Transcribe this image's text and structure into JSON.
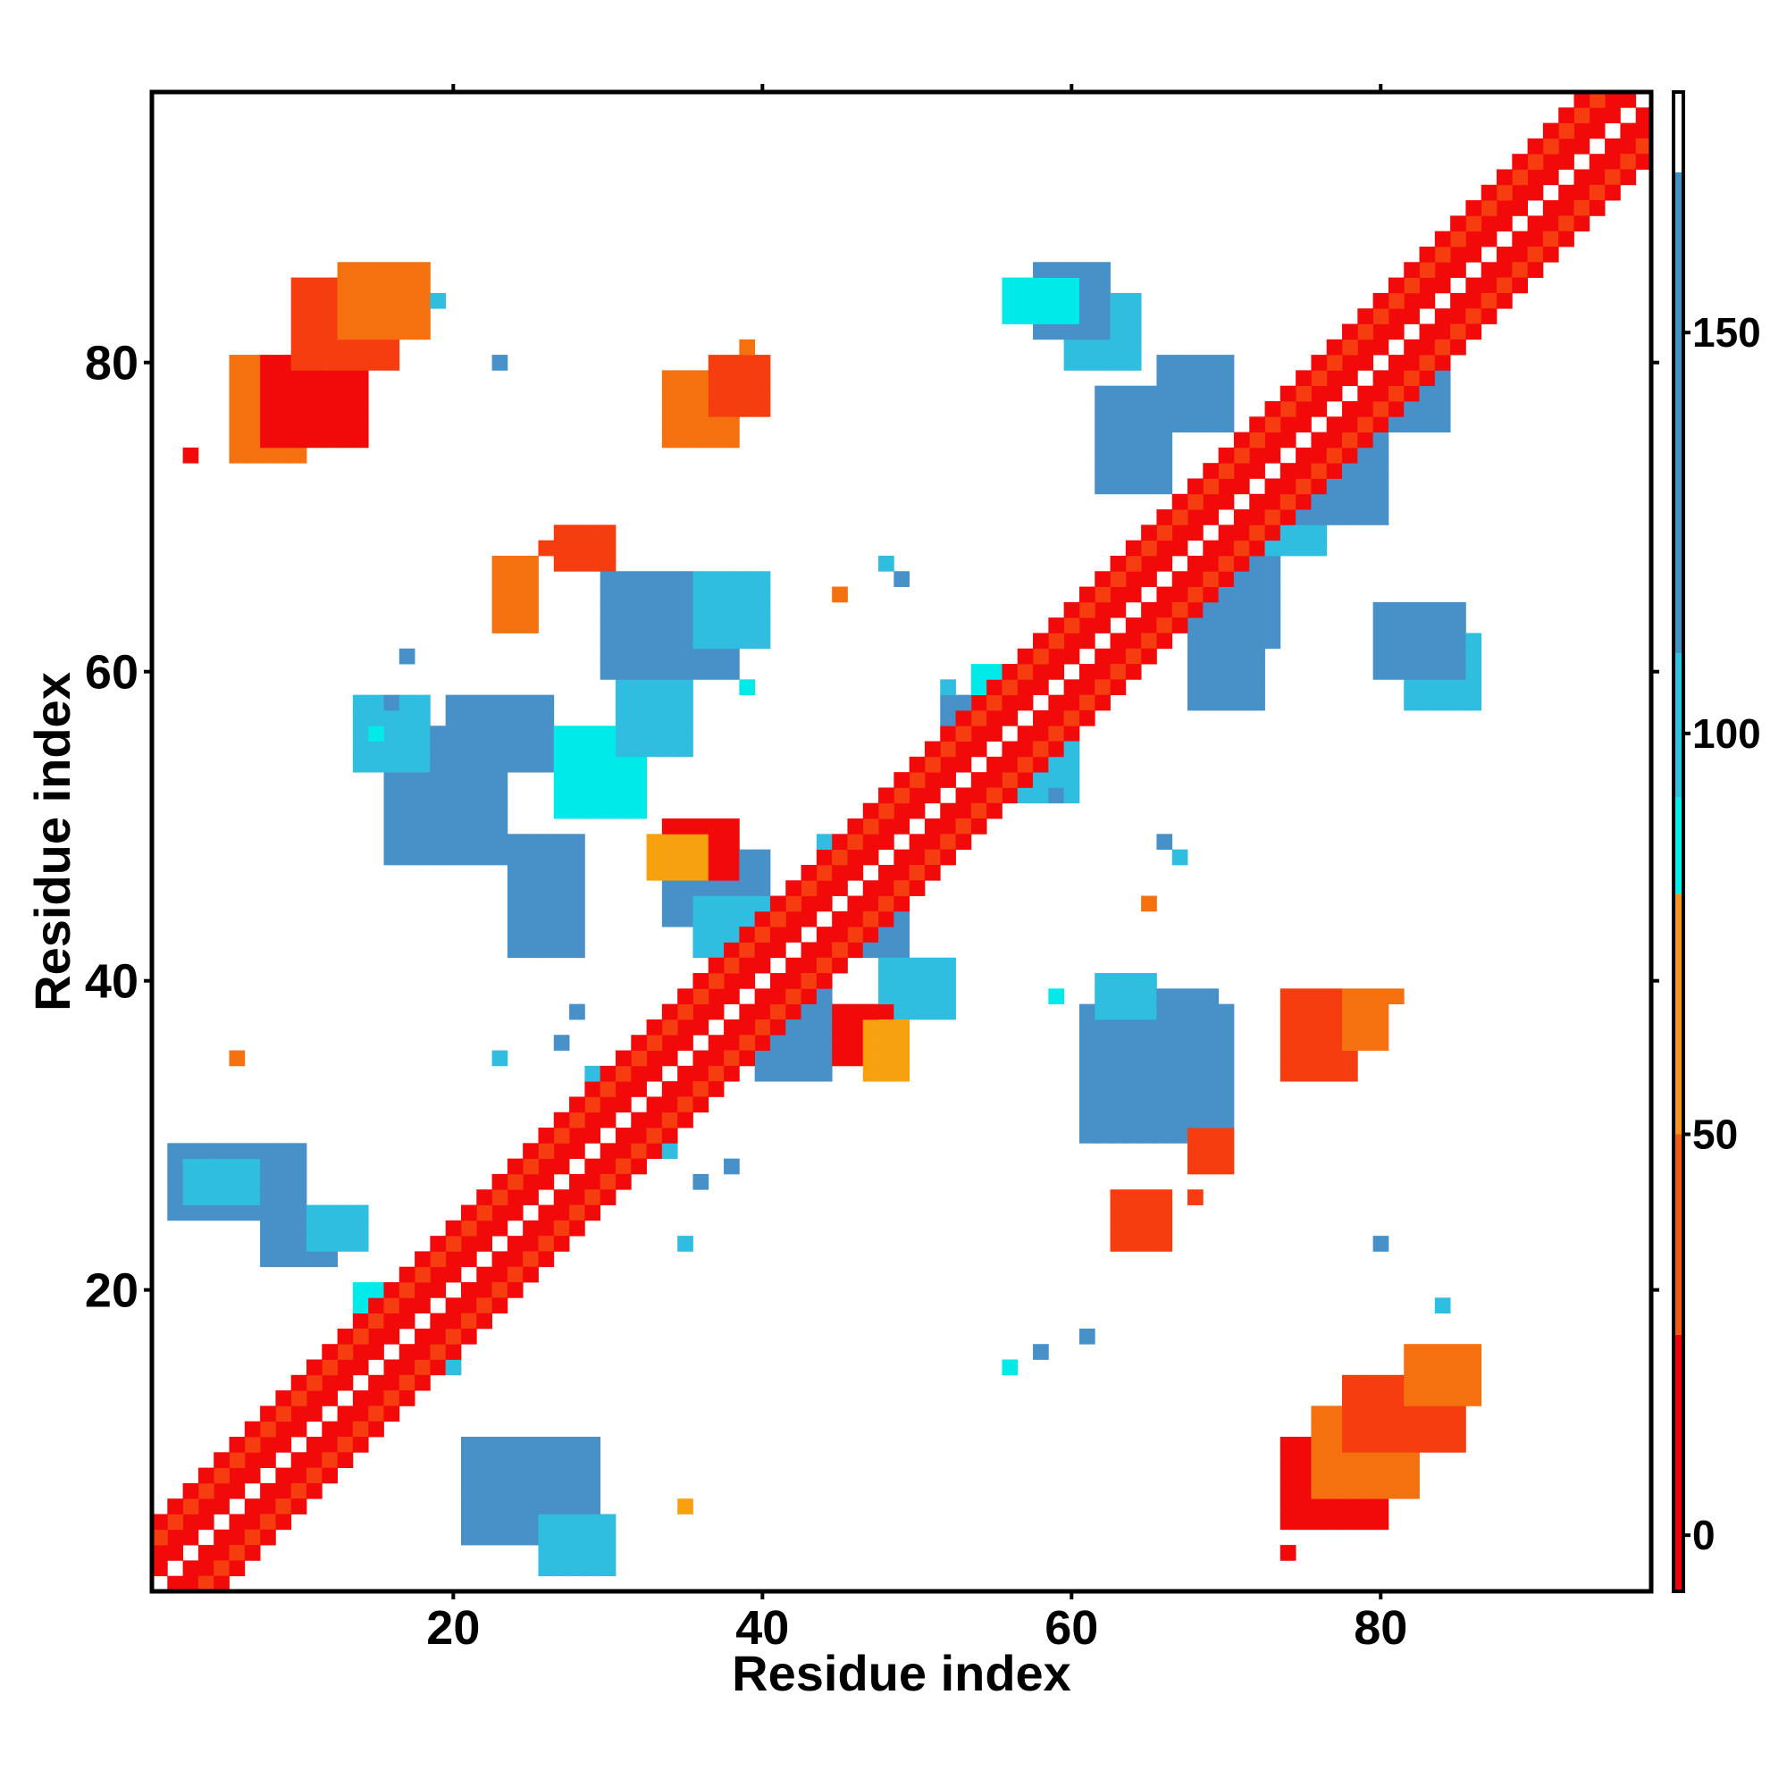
{
  "chart_data": {
    "type": "heatmap",
    "title": "",
    "xlabel": "Residue index",
    "ylabel": "Residue index",
    "xlim": [
      0.5,
      97.5
    ],
    "ylim": [
      0.5,
      97.5
    ],
    "x_ticks": [
      20,
      40,
      60,
      80
    ],
    "y_ticks": [
      20,
      40,
      60,
      80
    ],
    "grid": false,
    "colorbar": {
      "ticks": [
        0,
        50,
        100,
        150
      ],
      "range": [
        -7,
        180
      ],
      "segments": [
        {
          "from": -7,
          "to": 25,
          "color": "#f0000a"
        },
        {
          "from": 25,
          "to": 50,
          "color": "#f25a14"
        },
        {
          "from": 50,
          "to": 80,
          "color": "#f7931e"
        },
        {
          "from": 80,
          "to": 92,
          "color": "#00eeee"
        },
        {
          "from": 92,
          "to": 110,
          "color": "#2ec2e0"
        },
        {
          "from": 110,
          "to": 170,
          "color": "#4392c6"
        },
        {
          "from": 170,
          "to": 180,
          "color": "#ffffff"
        }
      ]
    },
    "palette": {
      "r": "#f20a0a",
      "ro": "#f53d10",
      "o": "#f5700f",
      "y": "#f8a10e",
      "c": "#00eaea",
      "lb": "#2fbde0",
      "b": "#4890c8",
      "bd": "#4a78bf"
    },
    "diagonal_pattern": [
      {
        "offset": 0,
        "start": 1,
        "end": 97,
        "color": "white"
      },
      {
        "offset": 1,
        "start": 1,
        "end": 96,
        "color": "r"
      },
      {
        "offset": 2,
        "start": 1,
        "end": 95,
        "color": "r"
      },
      {
        "offset": 3,
        "start": 1,
        "end": 94,
        "color": "ro"
      },
      {
        "offset": 4,
        "start": 1,
        "end": 93,
        "color": "r"
      }
    ],
    "blocks": [
      {
        "i": [
          2,
          10
        ],
        "j": [
          25,
          29
        ],
        "color": "b"
      },
      {
        "i": [
          3,
          7
        ],
        "j": [
          26,
          28
        ],
        "color": "lb"
      },
      {
        "i": [
          8,
          12
        ],
        "j": [
          22,
          24
        ],
        "color": "b"
      },
      {
        "i": [
          11,
          14
        ],
        "j": [
          23,
          25
        ],
        "color": "lb"
      },
      {
        "i": [
          14,
          19
        ],
        "j": [
          18,
          20
        ],
        "color": "c"
      },
      {
        "i": [
          16,
          20
        ],
        "j": [
          15,
          17
        ],
        "color": "lb"
      },
      {
        "i": [
          21,
          29
        ],
        "j": [
          4,
          10
        ],
        "color": "b"
      },
      {
        "i": [
          26,
          30
        ],
        "j": [
          2,
          5
        ],
        "color": "lb"
      },
      {
        "i": [
          29,
          34
        ],
        "j": [
          29,
          34
        ],
        "color": "lb"
      },
      {
        "i": [
          32,
          34
        ],
        "j": [
          31,
          33
        ],
        "color": "c"
      },
      {
        "i": [
          34,
          40
        ],
        "j": [
          44,
          48
        ],
        "color": "b"
      },
      {
        "i": [
          36,
          40
        ],
        "j": [
          42,
          45
        ],
        "color": "lb"
      },
      {
        "i": [
          38,
          42
        ],
        "j": [
          38,
          42
        ],
        "color": "lb"
      },
      {
        "i": [
          40,
          44
        ],
        "j": [
          34,
          39
        ],
        "color": "b"
      },
      {
        "i": [
          44,
          47
        ],
        "j": [
          45,
          49
        ],
        "color": "lb"
      },
      {
        "i": [
          46,
          49
        ],
        "j": [
          42,
          45
        ],
        "color": "b"
      },
      {
        "i": [
          48,
          52
        ],
        "j": [
          38,
          41
        ],
        "color": "lb"
      },
      {
        "i": [
          16,
          23
        ],
        "j": [
          48,
          56
        ],
        "color": "b"
      },
      {
        "i": [
          20,
          26
        ],
        "j": [
          54,
          58
        ],
        "color": "b"
      },
      {
        "i": [
          14,
          18
        ],
        "j": [
          54,
          58
        ],
        "color": "lb"
      },
      {
        "i": [
          24,
          28
        ],
        "j": [
          42,
          49
        ],
        "color": "b"
      },
      {
        "i": [
          27,
          32
        ],
        "j": [
          51,
          56
        ],
        "color": "c"
      },
      {
        "i": [
          31,
          35
        ],
        "j": [
          55,
          60
        ],
        "color": "lb"
      },
      {
        "i": [
          30,
          38
        ],
        "j": [
          60,
          66
        ],
        "color": "b"
      },
      {
        "i": [
          36,
          40
        ],
        "j": [
          62,
          66
        ],
        "color": "lb"
      },
      {
        "i": [
          54,
          60
        ],
        "j": [
          56,
          60
        ],
        "color": "c"
      },
      {
        "i": [
          56,
          60
        ],
        "j": [
          52,
          56
        ],
        "color": "lb"
      },
      {
        "i": [
          52,
          57
        ],
        "j": [
          54,
          58
        ],
        "color": "b"
      },
      {
        "i": [
          61,
          70
        ],
        "j": [
          30,
          38
        ],
        "color": "b"
      },
      {
        "i": [
          64,
          69
        ],
        "j": [
          34,
          39
        ],
        "color": "b"
      },
      {
        "i": [
          62,
          65
        ],
        "j": [
          38,
          40
        ],
        "color": "lb"
      },
      {
        "i": [
          68,
          73
        ],
        "j": [
          62,
          69
        ],
        "color": "b"
      },
      {
        "i": [
          68,
          72
        ],
        "j": [
          58,
          62
        ],
        "color": "b"
      },
      {
        "i": [
          70,
          74
        ],
        "j": [
          68,
          72
        ],
        "color": "c"
      },
      {
        "i": [
          72,
          76
        ],
        "j": [
          68,
          72
        ],
        "color": "lb"
      },
      {
        "i": [
          74,
          80
        ],
        "j": [
          70,
          76
        ],
        "color": "b"
      },
      {
        "i": [
          78,
          84
        ],
        "j": [
          76,
          80
        ],
        "color": "b"
      },
      {
        "i": [
          82,
          86
        ],
        "j": [
          58,
          62
        ],
        "color": "lb"
      },
      {
        "i": [
          80,
          85
        ],
        "j": [
          60,
          64
        ],
        "color": "b"
      },
      {
        "i": [
          62,
          66
        ],
        "j": [
          72,
          78
        ],
        "color": "b"
      },
      {
        "i": [
          66,
          70
        ],
        "j": [
          76,
          80
        ],
        "color": "b"
      },
      {
        "i": [
          60,
          64
        ],
        "j": [
          80,
          84
        ],
        "color": "lb"
      },
      {
        "i": [
          58,
          62
        ],
        "j": [
          82,
          86
        ],
        "color": "b"
      },
      {
        "i": [
          56,
          60
        ],
        "j": [
          83,
          85
        ],
        "color": "c"
      },
      {
        "i": [
          6,
          10
        ],
        "j": [
          74,
          80
        ],
        "color": "o"
      },
      {
        "i": [
          8,
          14
        ],
        "j": [
          75,
          80
        ],
        "color": "r"
      },
      {
        "i": [
          10,
          16
        ],
        "j": [
          80,
          85
        ],
        "color": "ro"
      },
      {
        "i": [
          13,
          18
        ],
        "j": [
          82,
          86
        ],
        "color": "o"
      },
      {
        "i": [
          74,
          80
        ],
        "j": [
          5,
          10
        ],
        "color": "r"
      },
      {
        "i": [
          76,
          82
        ],
        "j": [
          7,
          12
        ],
        "color": "o"
      },
      {
        "i": [
          78,
          85
        ],
        "j": [
          10,
          14
        ],
        "color": "ro"
      },
      {
        "i": [
          82,
          86
        ],
        "j": [
          13,
          16
        ],
        "color": "o"
      },
      {
        "i": [
          45,
          48
        ],
        "j": [
          35,
          38
        ],
        "color": "r"
      },
      {
        "i": [
          47,
          49
        ],
        "j": [
          34,
          37
        ],
        "color": "y"
      },
      {
        "i": [
          34,
          38
        ],
        "j": [
          47,
          50
        ],
        "color": "r"
      },
      {
        "i": [
          33,
          36
        ],
        "j": [
          47,
          49
        ],
        "color": "y"
      },
      {
        "i": [
          74,
          78
        ],
        "j": [
          34,
          39
        ],
        "color": "ro"
      },
      {
        "i": [
          78,
          80
        ],
        "j": [
          36,
          39
        ],
        "color": "o"
      },
      {
        "i": [
          34,
          38
        ],
        "j": [
          75,
          79
        ],
        "color": "o"
      },
      {
        "i": [
          37,
          40
        ],
        "j": [
          77,
          80
        ],
        "color": "ro"
      },
      {
        "i": [
          23,
          25
        ],
        "j": [
          63,
          67
        ],
        "color": "o"
      },
      {
        "i": [
          27,
          30
        ],
        "j": [
          67,
          69
        ],
        "color": "ro"
      },
      {
        "i": [
          63,
          66
        ],
        "j": [
          23,
          26
        ],
        "color": "ro"
      },
      {
        "i": [
          68,
          70
        ],
        "j": [
          28,
          30
        ],
        "color": "ro"
      }
    ],
    "points": [
      {
        "i": 74,
        "j": 3,
        "color": "r"
      },
      {
        "i": 3,
        "j": 74,
        "color": "r"
      },
      {
        "i": 35,
        "j": 6,
        "color": "y"
      },
      {
        "i": 6,
        "j": 35,
        "color": "o"
      },
      {
        "i": 80,
        "j": 23,
        "color": "b"
      },
      {
        "i": 23,
        "j": 80,
        "color": "b"
      },
      {
        "i": 84,
        "j": 19,
        "color": "lb"
      },
      {
        "i": 19,
        "j": 84,
        "color": "lb"
      },
      {
        "i": 17,
        "j": 61,
        "color": "b"
      },
      {
        "i": 61,
        "j": 17,
        "color": "b"
      },
      {
        "i": 15,
        "j": 56,
        "color": "c"
      },
      {
        "i": 56,
        "j": 15,
        "color": "c"
      },
      {
        "i": 39,
        "j": 59,
        "color": "c"
      },
      {
        "i": 59,
        "j": 39,
        "color": "c"
      },
      {
        "i": 45,
        "j": 65,
        "color": "o"
      },
      {
        "i": 65,
        "j": 45,
        "color": "o"
      },
      {
        "i": 59,
        "j": 52,
        "color": "b"
      },
      {
        "i": 52,
        "j": 59,
        "color": "lb"
      },
      {
        "i": 48,
        "j": 67,
        "color": "lb"
      },
      {
        "i": 67,
        "j": 48,
        "color": "lb"
      },
      {
        "i": 26,
        "j": 68,
        "color": "ro"
      },
      {
        "i": 68,
        "j": 26,
        "color": "ro"
      },
      {
        "i": 23,
        "j": 35,
        "color": "lb"
      },
      {
        "i": 35,
        "j": 23,
        "color": "lb"
      },
      {
        "i": 36,
        "j": 27,
        "color": "b"
      },
      {
        "i": 27,
        "j": 36,
        "color": "b"
      },
      {
        "i": 28,
        "j": 38,
        "color": "b"
      },
      {
        "i": 38,
        "j": 28,
        "color": "b"
      },
      {
        "i": 16,
        "j": 58,
        "color": "b"
      },
      {
        "i": 58,
        "j": 16,
        "color": "b"
      },
      {
        "i": 49,
        "j": 66,
        "color": "b"
      },
      {
        "i": 66,
        "j": 49,
        "color": "b"
      },
      {
        "i": 81,
        "j": 39,
        "color": "o"
      },
      {
        "i": 39,
        "j": 81,
        "color": "o"
      }
    ]
  }
}
